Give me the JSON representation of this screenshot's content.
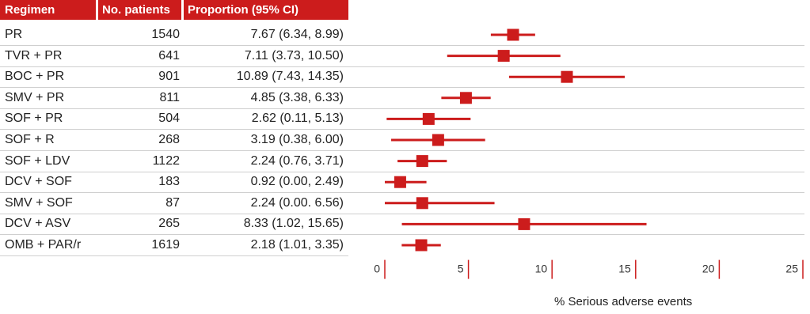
{
  "headers": {
    "regimen": "Regimen",
    "patients": "No. patients",
    "proportion": "Proportion (95% CI)"
  },
  "xlabel": "% Serious adverse events",
  "colors": {
    "accent": "#cc1c1c",
    "marker": "#cc1c1c"
  },
  "chart_data": {
    "type": "forest",
    "xlim": [
      0,
      25
    ],
    "xticks": [
      0,
      5,
      10,
      15,
      20,
      25
    ],
    "xlabel": "% Serious adverse events",
    "rows": [
      {
        "regimen": "PR",
        "n": "1540",
        "ci_text": "7.67 (6.34, 8.99)",
        "est": 7.67,
        "lo": 6.34,
        "hi": 8.99
      },
      {
        "regimen": "TVR + PR",
        "n": "641",
        "ci_text": "7.11 (3.73, 10.50)",
        "est": 7.11,
        "lo": 3.73,
        "hi": 10.5
      },
      {
        "regimen": "BOC + PR",
        "n": "901",
        "ci_text": "10.89 (7.43, 14.35)",
        "est": 10.89,
        "lo": 7.43,
        "hi": 14.35
      },
      {
        "regimen": "SMV + PR",
        "n": "811",
        "ci_text": "4.85 (3.38, 6.33)",
        "est": 4.85,
        "lo": 3.38,
        "hi": 6.33
      },
      {
        "regimen": "SOF + PR",
        "n": "504",
        "ci_text": "2.62 (0.11, 5.13)",
        "est": 2.62,
        "lo": 0.11,
        "hi": 5.13
      },
      {
        "regimen": "SOF + R",
        "n": "268",
        "ci_text": "3.19 (0.38, 6.00)",
        "est": 3.19,
        "lo": 0.38,
        "hi": 6.0
      },
      {
        "regimen": "SOF + LDV",
        "n": "1122",
        "ci_text": "2.24 (0.76, 3.71)",
        "est": 2.24,
        "lo": 0.76,
        "hi": 3.71
      },
      {
        "regimen": "DCV + SOF",
        "n": "183",
        "ci_text": "0.92 (0.00, 2.49)",
        "est": 0.92,
        "lo": 0.0,
        "hi": 2.49
      },
      {
        "regimen": "SMV + SOF",
        "n": "87",
        "ci_text": "2.24 (0.00. 6.56)",
        "est": 2.24,
        "lo": 0.0,
        "hi": 6.56
      },
      {
        "regimen": "DCV + ASV",
        "n": "265",
        "ci_text": "8.33 (1.02, 15.65)",
        "est": 8.33,
        "lo": 1.02,
        "hi": 15.65
      },
      {
        "regimen": "OMB + PAR/r",
        "n": "1619",
        "ci_text": "2.18 (1.01, 3.35)",
        "est": 2.18,
        "lo": 1.01,
        "hi": 3.35
      }
    ]
  }
}
